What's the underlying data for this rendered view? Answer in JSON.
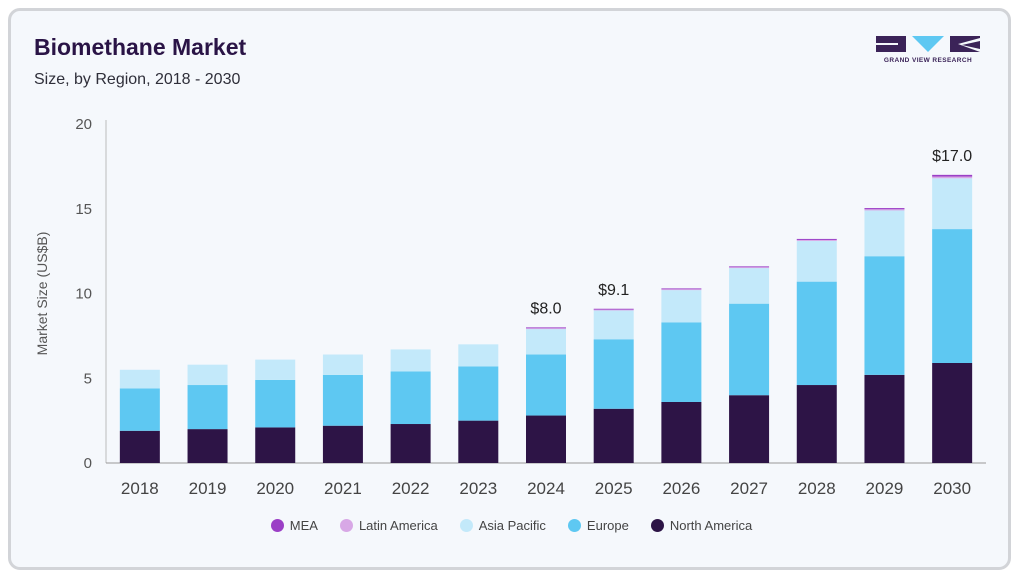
{
  "header": {
    "title": "Biomethane Market",
    "subtitle": "Size, by Region, 2018 - 2030"
  },
  "logo": {
    "text": "GRAND VIEW RESEARCH",
    "colors": [
      "#3b2358",
      "#5ec8f2"
    ]
  },
  "chart_data": {
    "type": "bar",
    "stacked": true,
    "categories": [
      "2018",
      "2019",
      "2020",
      "2021",
      "2022",
      "2023",
      "2024",
      "2025",
      "2026",
      "2027",
      "2028",
      "2029",
      "2030"
    ],
    "series": [
      {
        "name": "North America",
        "color": "#2d1446",
        "values": [
          1.9,
          2.0,
          2.1,
          2.2,
          2.3,
          2.5,
          2.8,
          3.2,
          3.6,
          4.0,
          4.6,
          5.2,
          5.9
        ]
      },
      {
        "name": "Europe",
        "color": "#5ec8f2",
        "values": [
          2.5,
          2.6,
          2.8,
          3.0,
          3.1,
          3.2,
          3.6,
          4.1,
          4.7,
          5.4,
          6.1,
          7.0,
          7.9
        ]
      },
      {
        "name": "Asia Pacific",
        "color": "#c3e9fa",
        "values": [
          1.1,
          1.2,
          1.2,
          1.2,
          1.3,
          1.3,
          1.5,
          1.7,
          1.9,
          2.1,
          2.4,
          2.7,
          3.0
        ]
      },
      {
        "name": "Latin America",
        "color": "#d8a8e6",
        "values": [
          0.0,
          0.0,
          0.0,
          0.0,
          0.0,
          0.0,
          0.05,
          0.05,
          0.05,
          0.05,
          0.06,
          0.07,
          0.1
        ]
      },
      {
        "name": "MEA",
        "color": "#9b3fc6",
        "values": [
          0.0,
          0.0,
          0.0,
          0.0,
          0.0,
          0.0,
          0.05,
          0.05,
          0.05,
          0.05,
          0.06,
          0.07,
          0.1
        ]
      }
    ],
    "legend_order": [
      "MEA",
      "Latin America",
      "Asia Pacific",
      "Europe",
      "North America"
    ],
    "annotations": [
      {
        "category": "2024",
        "label": "$8.0",
        "value": 8.0
      },
      {
        "category": "2025",
        "label": "$9.1",
        "value": 9.1
      },
      {
        "category": "2030",
        "label": "$17.0",
        "value": 17.0
      }
    ],
    "ylabel": "Market Size (US$B)",
    "xlabel": "",
    "ylim": [
      0,
      20
    ],
    "yticks": [
      0,
      5,
      10,
      15,
      20
    ],
    "grid": false,
    "legend_position": "bottom"
  }
}
